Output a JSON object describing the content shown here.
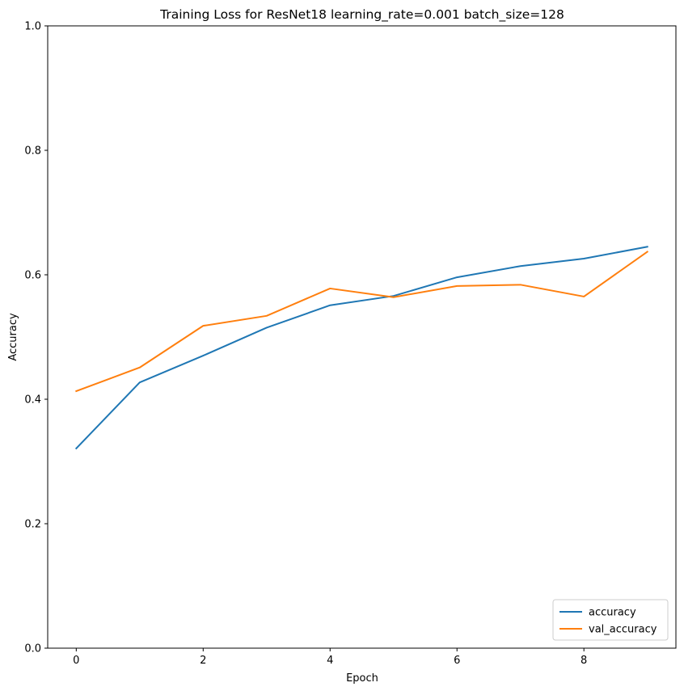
{
  "chart_data": {
    "type": "line",
    "title": "Training Loss for ResNet18 learning_rate=0.001 batch_size=128",
    "xlabel": "Epoch",
    "ylabel": "Accuracy",
    "xlim": [
      -0.45,
      9.45
    ],
    "ylim": [
      0,
      1
    ],
    "xticks": [
      0,
      2,
      4,
      6,
      8
    ],
    "yticks": [
      0.0,
      0.2,
      0.4,
      0.6,
      0.8,
      1.0
    ],
    "grid": false,
    "legend_position": "lower-right",
    "x": [
      0,
      1,
      2,
      3,
      4,
      5,
      6,
      7,
      8,
      9
    ],
    "series": [
      {
        "name": "accuracy",
        "color": "#1f77b4",
        "values": [
          0.321,
          0.427,
          0.47,
          0.515,
          0.551,
          0.566,
          0.596,
          0.614,
          0.626,
          0.645
        ]
      },
      {
        "name": "val_accuracy",
        "color": "#ff7f0e",
        "values": [
          0.413,
          0.451,
          0.518,
          0.534,
          0.578,
          0.564,
          0.582,
          0.584,
          0.565,
          0.637
        ]
      }
    ]
  }
}
